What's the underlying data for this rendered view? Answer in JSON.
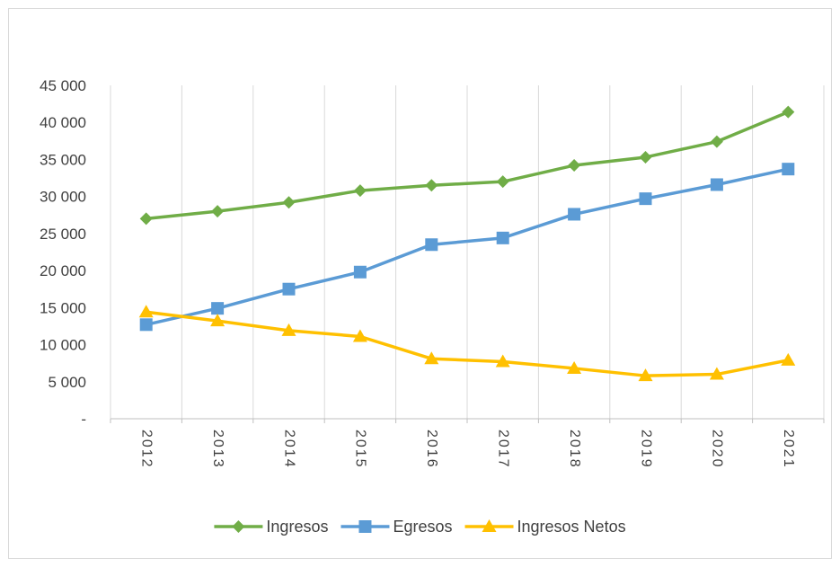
{
  "chart_data": {
    "type": "line",
    "title": "",
    "xlabel": "",
    "ylabel": "",
    "categories": [
      "2012",
      "2013",
      "2014",
      "2015",
      "2016",
      "2017",
      "2018",
      "2019",
      "2020",
      "2021"
    ],
    "y_ticks": [
      0,
      5000,
      10000,
      15000,
      20000,
      25000,
      30000,
      35000,
      40000,
      45000
    ],
    "y_tick_labels": [
      "-",
      "5 000",
      "10 000",
      "15 000",
      "20 000",
      "25 000",
      "30 000",
      "35 000",
      "40 000",
      "45 000"
    ],
    "ylim": [
      0,
      45000
    ],
    "grid": "vertical",
    "legend_position": "bottom",
    "series": [
      {
        "name": "Ingresos",
        "color": "#70AD47",
        "marker": "diamond",
        "values": [
          27000,
          28000,
          29200,
          30800,
          31500,
          32000,
          34200,
          35300,
          37400,
          41400
        ]
      },
      {
        "name": "Egresos",
        "color": "#5B9BD5",
        "marker": "square",
        "values": [
          12700,
          14900,
          17500,
          19800,
          23500,
          24400,
          27600,
          29700,
          31600,
          33700
        ]
      },
      {
        "name": "Ingresos Netos",
        "color": "#FFC000",
        "marker": "triangle",
        "values": [
          14400,
          13200,
          11900,
          11100,
          8100,
          7700,
          6800,
          5800,
          6000,
          7900
        ]
      }
    ]
  }
}
